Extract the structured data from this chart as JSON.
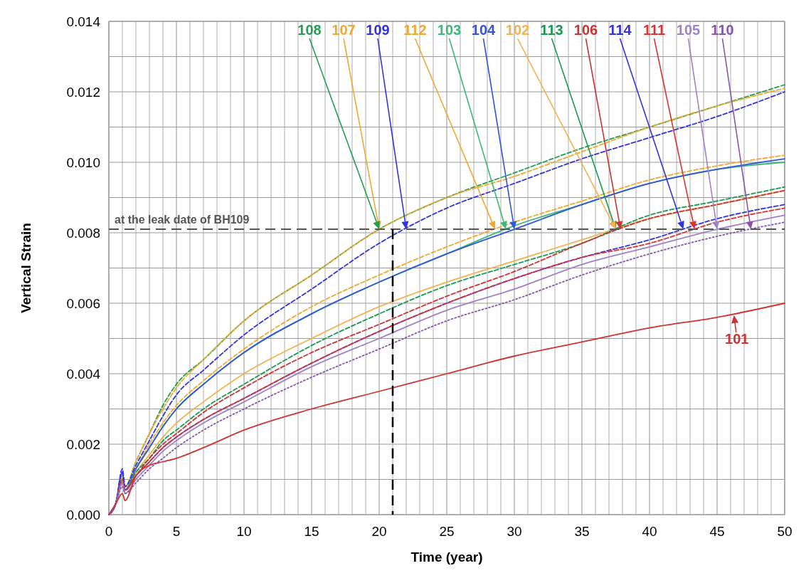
{
  "chart_data": {
    "type": "line",
    "xlabel": "Time (year)",
    "ylabel": "Vertical Strain",
    "x": [
      0,
      0.5,
      1,
      1.2,
      2,
      3,
      4,
      5,
      7,
      10,
      15,
      20,
      25,
      30,
      35,
      40,
      45,
      50
    ],
    "xlim": [
      0,
      50
    ],
    "xticks": [
      0,
      {
        "value": 1,
        "label": null
      },
      {
        "value": 2,
        "label": null
      },
      {
        "value": 3,
        "label": null
      },
      {
        "value": 4,
        "label": null
      },
      5,
      {
        "value": 6,
        "label": null
      },
      {
        "value": 7,
        "label": null
      },
      {
        "value": 8,
        "label": null
      },
      {
        "value": 9,
        "label": null
      },
      10,
      {
        "value": 11,
        "label": null
      },
      {
        "value": 12,
        "label": null
      },
      {
        "value": 13,
        "label": null
      },
      {
        "value": 14,
        "label": null
      },
      15,
      {
        "value": 16,
        "label": null
      },
      {
        "value": 17,
        "label": null
      },
      {
        "value": 18,
        "label": null
      },
      {
        "value": 19,
        "label": null
      },
      20,
      {
        "value": 21,
        "label": null
      },
      {
        "value": 22,
        "label": null
      },
      {
        "value": 23,
        "label": null
      },
      {
        "value": 24,
        "label": null
      },
      25,
      {
        "value": 26,
        "label": null
      },
      {
        "value": 27,
        "label": null
      },
      {
        "value": 28,
        "label": null
      },
      {
        "value": 29,
        "label": null
      },
      30,
      {
        "value": 31,
        "label": null
      },
      {
        "value": 32,
        "label": null
      },
      {
        "value": 33,
        "label": null
      },
      {
        "value": 34,
        "label": null
      },
      35,
      {
        "value": 36,
        "label": null
      },
      {
        "value": 37,
        "label": null
      },
      {
        "value": 38,
        "label": null
      },
      {
        "value": 39,
        "label": null
      },
      40,
      {
        "value": 41,
        "label": null
      },
      {
        "value": 42,
        "label": null
      },
      {
        "value": 43,
        "label": null
      },
      {
        "value": 44,
        "label": null
      },
      45,
      {
        "value": 46,
        "label": null
      },
      {
        "value": 47,
        "label": null
      },
      {
        "value": 48,
        "label": null
      },
      {
        "value": 49,
        "label": null
      },
      50
    ],
    "ylim": [
      0,
      0.014
    ],
    "yticks": [
      {
        "value": 0,
        "label": "0.000"
      },
      {
        "value": 0.001,
        "label": null
      },
      {
        "value": 0.002,
        "label": "0.002"
      },
      {
        "value": 0.003,
        "label": null
      },
      {
        "value": 0.004,
        "label": "0.004"
      },
      {
        "value": 0.005,
        "label": null
      },
      {
        "value": 0.006,
        "label": "0.006"
      },
      {
        "value": 0.007,
        "label": null
      },
      {
        "value": 0.008,
        "label": "0.008"
      },
      {
        "value": 0.009,
        "label": null
      },
      {
        "value": 0.01,
        "label": "0.010"
      },
      {
        "value": 0.011,
        "label": null
      },
      {
        "value": 0.012,
        "label": "0.012"
      },
      {
        "value": 0.013,
        "label": null
      },
      {
        "value": 0.014,
        "label": "0.014"
      }
    ],
    "grid": true,
    "ref_lines": [
      {
        "axis": "y",
        "value": 0.0081,
        "label": "at the leak date of BH109",
        "color": "#555555",
        "line_style": "dashed"
      },
      {
        "axis": "x",
        "value": 21,
        "label": null,
        "color": "#000000",
        "line_style": "dashed"
      }
    ],
    "series": [
      {
        "name": "108",
        "color": "#22a050",
        "line_style": "dashed",
        "values": [
          0,
          0.0003,
          0.0012,
          0.0008,
          0.0015,
          0.0023,
          0.0031,
          0.0037,
          0.0044,
          0.0055,
          0.0068,
          0.0081,
          0.009,
          0.0097,
          0.0104,
          0.011,
          0.0116,
          0.0122
        ]
      },
      {
        "name": "107",
        "color": "#f0a830",
        "line_style": "dashed",
        "values": [
          0,
          0.0003,
          0.0011,
          0.0008,
          0.0015,
          0.0023,
          0.003,
          0.0036,
          0.0044,
          0.0055,
          0.0068,
          0.0081,
          0.009,
          0.0096,
          0.0103,
          0.011,
          0.0116,
          0.0121
        ]
      },
      {
        "name": "109",
        "color": "#3333dd",
        "line_style": "dashed",
        "values": [
          0,
          0.0003,
          0.0013,
          0.0008,
          0.0014,
          0.0021,
          0.0028,
          0.0034,
          0.0041,
          0.0051,
          0.0064,
          0.0077,
          0.0087,
          0.0094,
          0.0101,
          0.0107,
          0.0113,
          0.012
        ]
      },
      {
        "name": "112",
        "color": "#f0a830",
        "line_style": "dashed",
        "values": [
          0,
          0.0003,
          0.001,
          0.0007,
          0.0013,
          0.002,
          0.0026,
          0.0031,
          0.0038,
          0.0047,
          0.0059,
          0.0068,
          0.0076,
          0.0083,
          0.0089,
          0.0095,
          0.0099,
          0.0102
        ]
      },
      {
        "name": "103",
        "color": "#3cb878",
        "line_style": "solid",
        "values": [
          0,
          0.0003,
          0.001,
          0.0007,
          0.0013,
          0.0019,
          0.0025,
          0.003,
          0.0037,
          0.0046,
          0.0057,
          0.0066,
          0.0074,
          0.0082,
          0.0088,
          0.0094,
          0.0098,
          0.01
        ]
      },
      {
        "name": "104",
        "color": "#3355dd",
        "line_style": "solid",
        "values": [
          0,
          0.0003,
          0.0012,
          0.0007,
          0.0013,
          0.0019,
          0.0025,
          0.003,
          0.0037,
          0.0046,
          0.0057,
          0.0066,
          0.0074,
          0.0081,
          0.0088,
          0.0094,
          0.0098,
          0.0101
        ]
      },
      {
        "name": "102",
        "color": "#f5b050",
        "line_style": "solid",
        "values": [
          null,
          null,
          0.0009,
          0.0007,
          0.0012,
          0.0017,
          0.0022,
          0.0026,
          0.0032,
          0.004,
          0.005,
          0.0059,
          0.0066,
          0.0072,
          0.0078,
          0.0084,
          0.0088,
          0.0092
        ]
      },
      {
        "name": "113",
        "color": "#1a9a50",
        "line_style": "dashed",
        "values": [
          0,
          0.0003,
          0.0009,
          0.0007,
          0.0012,
          0.0016,
          0.0021,
          0.0024,
          0.003,
          0.0037,
          0.0048,
          0.0057,
          0.0065,
          0.0071,
          0.0077,
          0.0085,
          0.0089,
          0.0093
        ]
      },
      {
        "name": "106",
        "color": "#cc3333",
        "line_style": "dashed",
        "values": [
          0,
          0.0003,
          0.0009,
          0.0007,
          0.0011,
          0.0016,
          0.002,
          0.0023,
          0.0029,
          0.0036,
          0.0046,
          0.0054,
          0.0062,
          0.0069,
          0.0077,
          0.0084,
          0.0088,
          0.0092
        ]
      },
      {
        "name": "114",
        "color": "#3333dd",
        "line_style": "dashed",
        "values": [
          0,
          0.0003,
          0.0012,
          0.0007,
          0.0011,
          0.0015,
          0.0019,
          0.0022,
          0.0027,
          0.0033,
          0.0043,
          0.0052,
          0.006,
          0.0067,
          0.0073,
          0.0078,
          0.0084,
          0.0088
        ]
      },
      {
        "name": "111",
        "color": "#dd3333",
        "line_style": "dashed",
        "values": [
          0,
          0.0003,
          0.001,
          0.0007,
          0.0011,
          0.0015,
          0.0019,
          0.0022,
          0.0027,
          0.0033,
          0.0043,
          0.0052,
          0.006,
          0.0067,
          0.0073,
          0.0077,
          0.0083,
          0.0087
        ]
      },
      {
        "name": "105",
        "color": "#a080c8",
        "line_style": "solid",
        "values": [
          0,
          0.0003,
          0.0009,
          0.0006,
          0.001,
          0.0014,
          0.0018,
          0.0021,
          0.0026,
          0.0032,
          0.0042,
          0.005,
          0.0058,
          0.0064,
          0.0071,
          0.0076,
          0.0081,
          0.0085
        ]
      },
      {
        "name": "110",
        "color": "#8855aa",
        "line_style": "dotted",
        "values": [
          0,
          0.0003,
          0.0008,
          0.0006,
          0.0009,
          0.0013,
          0.0016,
          0.0019,
          0.0024,
          0.003,
          0.0039,
          0.0047,
          0.0055,
          0.0061,
          0.0068,
          0.0074,
          0.0079,
          0.0083
        ]
      },
      {
        "name": "101",
        "color": "#cc3333",
        "line_style": "solid",
        "values": [
          0,
          0.0003,
          0.0006,
          0.0004,
          0.0011,
          0.0014,
          0.0015,
          0.0016,
          0.0019,
          0.0024,
          0.003,
          0.0035,
          0.004,
          0.0045,
          0.0049,
          0.0053,
          0.0056,
          0.006
        ]
      }
    ]
  }
}
